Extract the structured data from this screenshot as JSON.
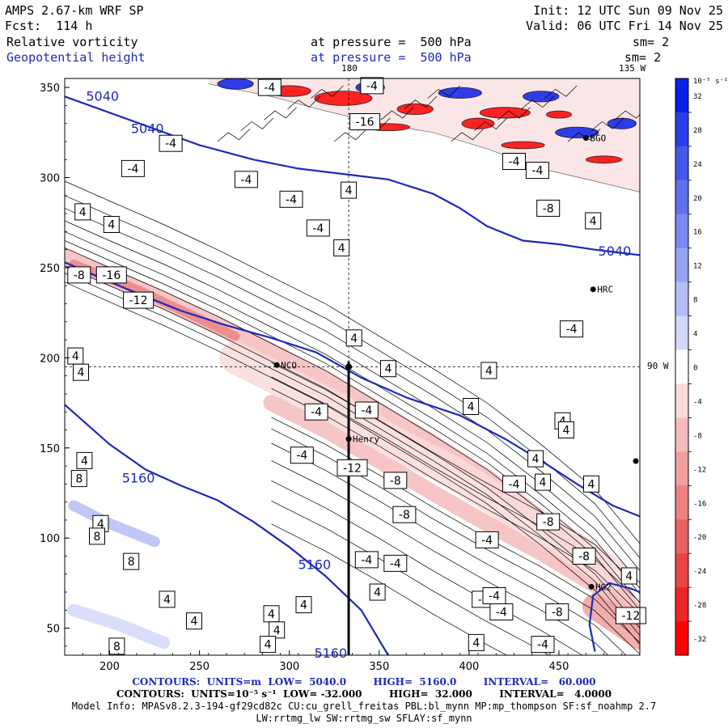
{
  "header": {
    "model_title": "AMPS 2.67-km WRF SP",
    "forecast": "Fcst:  114 h",
    "field1_name": "Relative vorticity",
    "field2_name": "Geopotential height",
    "field1_level": "at pressure =  500 hPa",
    "field2_level": "at pressure =  500 hPa",
    "init_time": "Init: 12 UTC Sun 09 Nov 25",
    "valid_time": "Valid: 06 UTC Fri 14 Nov 25",
    "field1_smoothing": "sm= 2",
    "field2_smoothing": "sm= 2"
  },
  "map_annotations": {
    "lon_180": "180",
    "lon_135w": "135 W",
    "lon_90w": "90 W",
    "stations": [
      {
        "name": "NCO",
        "x": 293,
        "y": 196
      },
      {
        "name": "Henry",
        "x": 333,
        "y": 155
      },
      {
        "name": "HRC",
        "x": 469,
        "y": 238
      },
      {
        "name": "HG2",
        "x": 468,
        "y": 73
      },
      {
        "name": "BGO",
        "x": 465,
        "y": 322
      }
    ]
  },
  "colorbar": {
    "unit_label": "10⁻⁵ s⁻¹",
    "labels": [
      "32",
      "28",
      "24",
      "20",
      "16",
      "12",
      "8",
      "4",
      "0",
      "-4",
      "-8",
      "-12",
      "-16",
      "-20",
      "-24",
      "-28",
      "-32"
    ],
    "colors": [
      "#0c1fe6",
      "#2a3ee8",
      "#4458e8",
      "#5f70ea",
      "#7b89ee",
      "#98a3f1",
      "#b5bdf5",
      "#d3d8fa",
      "#ffffff",
      "#fadada",
      "#f5bcbc",
      "#f09f9f",
      "#ec8282",
      "#e86464",
      "#e84545",
      "#ec2525",
      "#ff0000"
    ]
  },
  "chart_data": {
    "type": "contour-map",
    "xlim": [
      175,
      495
    ],
    "ylim": [
      35,
      355
    ],
    "x_ticks": [
      200,
      250,
      300,
      350,
      400,
      450
    ],
    "y_ticks": [
      50,
      100,
      150,
      200,
      250,
      300,
      350
    ],
    "crosshair": {
      "x": 333,
      "y": 195
    },
    "cross_section_line": {
      "x": 333,
      "y_from": 35,
      "y_to": 198
    },
    "height_contours": [
      {
        "label": "5040",
        "points": [
          [
            175,
            345
          ],
          [
            200,
            336
          ],
          [
            225,
            327
          ],
          [
            250,
            318
          ],
          [
            280,
            310
          ],
          [
            305,
            305
          ],
          [
            330,
            302
          ],
          [
            355,
            299
          ],
          [
            380,
            291
          ],
          [
            395,
            283
          ],
          [
            410,
            273
          ],
          [
            430,
            265
          ],
          [
            450,
            263
          ],
          [
            470,
            260
          ],
          [
            495,
            257
          ]
        ]
      },
      {
        "label": "5040",
        "points": [
          [
            175,
            253
          ],
          [
            210,
            238
          ],
          [
            240,
            226
          ],
          [
            265,
            218
          ],
          [
            290,
            211
          ],
          [
            315,
            203
          ],
          [
            340,
            189
          ],
          [
            365,
            178
          ],
          [
            395,
            168
          ],
          [
            420,
            155
          ],
          [
            440,
            143
          ],
          [
            460,
            130
          ],
          [
            480,
            118
          ],
          [
            495,
            112
          ]
        ]
      },
      {
        "label": "5160",
        "points": [
          [
            175,
            174
          ],
          [
            200,
            152
          ],
          [
            220,
            138
          ],
          [
            240,
            129
          ],
          [
            260,
            121
          ],
          [
            280,
            109
          ],
          [
            300,
            95
          ],
          [
            320,
            79
          ],
          [
            340,
            60
          ],
          [
            355,
            35
          ]
        ]
      },
      {
        "label": "5160",
        "points": [
          [
            470,
            37
          ],
          [
            467,
            52
          ],
          [
            469,
            68
          ],
          [
            478,
            75
          ],
          [
            490,
            72
          ],
          [
            495,
            70
          ]
        ]
      }
    ],
    "height_contour_labels": [
      {
        "label": "5040",
        "x": 196,
        "y": 345
      },
      {
        "label": "5040",
        "x": 221,
        "y": 327
      },
      {
        "label": "5040",
        "x": 481,
        "y": 259
      },
      {
        "label": "5160",
        "x": 216,
        "y": 133
      },
      {
        "label": "5160",
        "x": 314,
        "y": 85
      },
      {
        "label": "5160",
        "x": 323,
        "y": 36
      }
    ],
    "vorticity_bands": [
      {
        "value": -8,
        "points": [
          [
            175,
            256
          ],
          [
            200,
            245
          ],
          [
            230,
            232
          ],
          [
            260,
            218
          ],
          [
            290,
            203
          ],
          [
            320,
            188
          ],
          [
            350,
            170
          ],
          [
            380,
            152
          ],
          [
            410,
            133
          ],
          [
            440,
            110
          ],
          [
            470,
            85
          ],
          [
            495,
            55
          ]
        ],
        "width": 10
      },
      {
        "value": -16,
        "points": [
          [
            180,
            252
          ],
          [
            215,
            238
          ],
          [
            245,
            224
          ],
          [
            270,
            212
          ]
        ],
        "width": 5
      },
      {
        "value": -8,
        "points": [
          [
            290,
            175
          ],
          [
            320,
            160
          ],
          [
            350,
            143
          ],
          [
            380,
            125
          ],
          [
            410,
            108
          ],
          [
            440,
            92
          ],
          [
            470,
            74
          ],
          [
            495,
            50
          ]
        ],
        "width": 9
      },
      {
        "value": -4,
        "points": [
          [
            270,
            200
          ],
          [
            300,
            185
          ],
          [
            330,
            170
          ],
          [
            360,
            152
          ],
          [
            390,
            137
          ],
          [
            420,
            118
          ],
          [
            450,
            100
          ],
          [
            480,
            80
          ]
        ],
        "width": 18
      },
      {
        "value": -12,
        "points": [
          [
            470,
            62
          ],
          [
            485,
            52
          ],
          [
            495,
            45
          ]
        ],
        "width": 14
      },
      {
        "value": 8,
        "points": [
          [
            180,
            118
          ],
          [
            200,
            108
          ],
          [
            225,
            98
          ]
        ],
        "width": 6
      },
      {
        "value": 4,
        "points": [
          [
            180,
            60
          ],
          [
            205,
            52
          ],
          [
            230,
            42
          ]
        ],
        "width": 7
      }
    ],
    "vorticity_contour_labels": [
      {
        "label": "-4",
        "x": 289,
        "y": 350
      },
      {
        "label": "-4",
        "x": 234,
        "y": 319
      },
      {
        "label": "-4",
        "x": 213,
        "y": 305
      },
      {
        "label": "-4",
        "x": 276,
        "y": 299
      },
      {
        "label": "-4",
        "x": 301,
        "y": 288
      },
      {
        "label": "-4",
        "x": 316,
        "y": 272
      },
      {
        "label": "4",
        "x": 185,
        "y": 281
      },
      {
        "label": "4",
        "x": 201,
        "y": 274
      },
      {
        "label": "4",
        "x": 333,
        "y": 293
      },
      {
        "label": "-16",
        "x": 342,
        "y": 331
      },
      {
        "label": "-4",
        "x": 346,
        "y": 351
      },
      {
        "label": "-4",
        "x": 425,
        "y": 309
      },
      {
        "label": "-4",
        "x": 438,
        "y": 304
      },
      {
        "label": "-8",
        "x": 444,
        "y": 283
      },
      {
        "label": "4",
        "x": 469,
        "y": 276
      },
      {
        "label": "-8",
        "x": 183,
        "y": 246
      },
      {
        "label": "-16",
        "x": 201,
        "y": 246
      },
      {
        "label": "-12",
        "x": 216,
        "y": 232
      },
      {
        "label": "4",
        "x": 329,
        "y": 261
      },
      {
        "label": "4",
        "x": 336,
        "y": 211
      },
      {
        "label": "4",
        "x": 355,
        "y": 194
      },
      {
        "label": "-4",
        "x": 457,
        "y": 216
      },
      {
        "label": "4",
        "x": 181,
        "y": 201
      },
      {
        "label": "4",
        "x": 184,
        "y": 192
      },
      {
        "label": "4",
        "x": 411,
        "y": 193
      },
      {
        "label": "-4",
        "x": 315,
        "y": 170
      },
      {
        "label": "-4",
        "x": 343,
        "y": 171
      },
      {
        "label": "4",
        "x": 401,
        "y": 173
      },
      {
        "label": "4",
        "x": 452,
        "y": 165
      },
      {
        "label": "4",
        "x": 454,
        "y": 160
      },
      {
        "label": "4",
        "x": 437,
        "y": 144
      },
      {
        "label": "-4",
        "x": 307,
        "y": 146
      },
      {
        "label": "-12",
        "x": 335,
        "y": 139
      },
      {
        "label": "-8",
        "x": 359,
        "y": 132
      },
      {
        "label": "4",
        "x": 186,
        "y": 143
      },
      {
        "label": "4",
        "x": 170,
        "y": 122
      },
      {
        "label": "-4",
        "x": 425,
        "y": 130
      },
      {
        "label": "4",
        "x": 441,
        "y": 131
      },
      {
        "label": "4",
        "x": 468,
        "y": 130
      },
      {
        "label": "8",
        "x": 183,
        "y": 133
      },
      {
        "label": "-8",
        "x": 364,
        "y": 113
      },
      {
        "label": "4",
        "x": 195,
        "y": 108
      },
      {
        "label": "8",
        "x": 193,
        "y": 101
      },
      {
        "label": "-4",
        "x": 410,
        "y": 99
      },
      {
        "label": "-8",
        "x": 444,
        "y": 109
      },
      {
        "label": "-4",
        "x": 343,
        "y": 88
      },
      {
        "label": "-4",
        "x": 359,
        "y": 86
      },
      {
        "label": "-8",
        "x": 464,
        "y": 90
      },
      {
        "label": "8",
        "x": 212,
        "y": 87
      },
      {
        "label": "4",
        "x": 349,
        "y": 70
      },
      {
        "label": "4",
        "x": 232,
        "y": 66
      },
      {
        "label": "4",
        "x": 308,
        "y": 63
      },
      {
        "label": "-4",
        "x": 408,
        "y": 66
      },
      {
        "label": "-4",
        "x": 414,
        "y": 68
      },
      {
        "label": "4",
        "x": 489,
        "y": 79
      },
      {
        "label": "4",
        "x": 247,
        "y": 54
      },
      {
        "label": "4",
        "x": 290,
        "y": 58
      },
      {
        "label": "-4",
        "x": 418,
        "y": 59
      },
      {
        "label": "-8",
        "x": 449,
        "y": 59
      },
      {
        "label": "-12",
        "x": 490,
        "y": 57
      },
      {
        "label": "4",
        "x": 293,
        "y": 49
      },
      {
        "label": "8",
        "x": 204,
        "y": 40
      },
      {
        "label": "4",
        "x": 288,
        "y": 41
      },
      {
        "label": "4",
        "x": 404,
        "y": 42
      },
      {
        "label": "-4",
        "x": 441,
        "y": 41
      }
    ]
  },
  "footer": {
    "line1": "CONTOURS:  UNITS=m  LOW=  5040.0        HIGH=  5160.0        INTERVAL=   60.000",
    "line2": "CONTOURS:  UNITS=10⁻⁵ s⁻¹  LOW= -32.000        HIGH=  32.000        INTERVAL=   4.0000",
    "line3": "Model Info: MPASv8.2.3-194-gf29cd82c CU:cu_grell_freitas PBL:bl_mynn MP:mp_thompson SF:sf_noahmp 2.7",
    "line4": "LW:rrtmg_lw SW:rrtmg_sw SFLAY:sf_mynn"
  }
}
